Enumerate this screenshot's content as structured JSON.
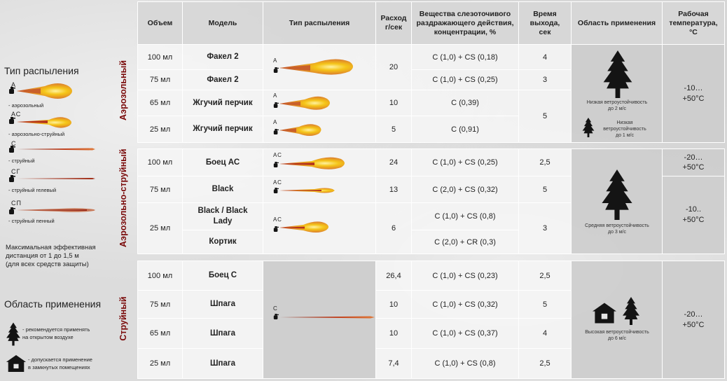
{
  "legend": {
    "spray_title": "Тип распыления",
    "items": [
      {
        "code": "А",
        "label": "- аэрозольный"
      },
      {
        "code": "АС",
        "label": "- аэрозольно-струйный"
      },
      {
        "code": "С",
        "label": "- струйный"
      },
      {
        "code": "СГ",
        "label": "- струйный гелевый"
      },
      {
        "code": "СП",
        "label": "- струйный пенный"
      }
    ],
    "distance_note": [
      "Максимальная эффективная",
      "дистанция от 1 до 1,5 м",
      "(для всех средств защиты)"
    ],
    "area_title": "Область применения",
    "area_items": [
      {
        "icon": "tree-icon",
        "lines": [
          "- рекомендуется применять",
          "на открытом воздухе"
        ]
      },
      {
        "icon": "house-icon",
        "lines": [
          "- допускается применение",
          "в замкнутых помещениях"
        ]
      }
    ]
  },
  "table": {
    "headers": {
      "volume": "Объем",
      "model": "Модель",
      "spray_type": "Тип распыления",
      "rate": "Расход г/сек",
      "agents": "Вещества слезоточивого раздражающего действия, концентрации, %",
      "exit_time": "Время выхода, сек",
      "area": "Область применения",
      "temp": "Рабочая температура, °С"
    },
    "sections": [
      {
        "label": "Аэрозольный",
        "rows": [
          {
            "volume": "100 мл",
            "model": "Факел 2",
            "agent": "С (1,0) + CS (0,18)",
            "time": "4"
          },
          {
            "volume": "75 мл",
            "model": "Факел 2",
            "agent": "С (1,0) + CS (0,25)",
            "time": "3"
          },
          {
            "volume": "65 мл",
            "model": "Жгучий перчик",
            "agent": "С (0,39)"
          },
          {
            "volume": "25 мл",
            "model": "Жгучий перчик",
            "agent": "С (0,91)"
          }
        ],
        "spray_codes": [
          "А",
          "А",
          "А"
        ],
        "rates": [
          "20",
          "10",
          "5"
        ],
        "time_merged": "5",
        "area_captions": [
          [
            "Низкая ветроустойчивость",
            "до 2 м/с"
          ],
          [
            "Низкая",
            "ветроустойчивость",
            "до 1 м/с"
          ]
        ],
        "temps": [
          "-10…",
          "+50°С"
        ]
      },
      {
        "label": "Аэрозольно-струйный",
        "rows": [
          {
            "volume": "100 мл",
            "model": "Боец АС",
            "rate": "24",
            "agent": "С (1,0) + CS (0,25)",
            "time": "2,5"
          },
          {
            "volume": "75 мл",
            "model": "Black",
            "rate": "13",
            "agent": "С (2,0) + CS (0,32)",
            "time": "5"
          },
          {
            "volume": "25 мл",
            "model": "Black / Black Lady",
            "rate": "6",
            "agent": "С (1,0) + CS (0,8)"
          },
          {
            "model": "Кортик",
            "agent": "С (2,0) + CR (0,3)"
          }
        ],
        "spray_codes": [
          "АС",
          "АС",
          "АС"
        ],
        "time_merged": "3",
        "area_captions": [
          [
            "Средняя ветроустойчивость",
            "до 3 м/с"
          ]
        ],
        "temps": [
          [
            "-20…",
            "+50°С"
          ],
          [
            "-10..",
            "+50°С"
          ]
        ]
      },
      {
        "label": "Струйный",
        "rows": [
          {
            "volume": "100 мл",
            "model": "Боец С",
            "rate": "26,4",
            "agent": "С (1,0) + CS (0,23)",
            "time": "2,5"
          },
          {
            "volume": "75 мл",
            "model": "Шпага",
            "rate": "10",
            "agent": "С (1,0) + CS (0,32)",
            "time": "5"
          },
          {
            "volume": "65 мл",
            "model": "Шпага",
            "rate": "10",
            "agent": "С (1,0) + CS (0,37)",
            "time": "4"
          },
          {
            "volume": "25 мл",
            "model": "Шпага",
            "rate": "7,4",
            "agent": "С (1,0) + CS (0,8)",
            "time": "2,5"
          }
        ],
        "spray_codes": [
          "С"
        ],
        "area_captions": [
          [
            "Высокая ветроустойчивость",
            "до 6 м/с"
          ]
        ],
        "temps": [
          "-20…",
          "+50°С"
        ]
      }
    ]
  },
  "colors": {
    "section_label": "#7a0a0a",
    "flame_inner": "#f5c518",
    "flame_outer": "#d9862a",
    "jet": "#b5341c",
    "icon": "#141414"
  }
}
